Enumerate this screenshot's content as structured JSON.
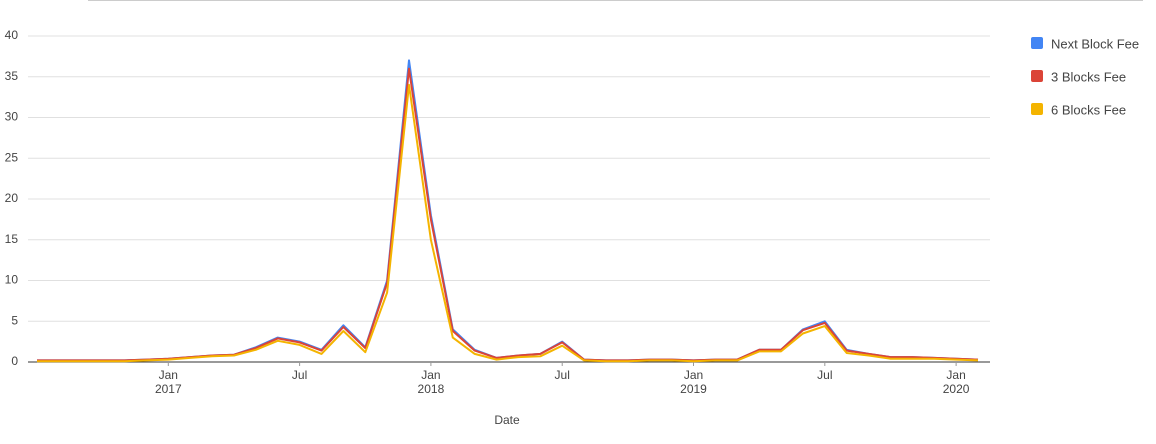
{
  "chart_data": {
    "type": "line",
    "x_label": "Date",
    "x": [
      "2016-07",
      "2016-08",
      "2016-09",
      "2016-10",
      "2016-11",
      "2016-12",
      "2017-01",
      "2017-02",
      "2017-03",
      "2017-04",
      "2017-05",
      "2017-06",
      "2017-07",
      "2017-08",
      "2017-09",
      "2017-10",
      "2017-11",
      "2017-12",
      "2018-01",
      "2018-02",
      "2018-03",
      "2018-04",
      "2018-05",
      "2018-06",
      "2018-07",
      "2018-08",
      "2018-09",
      "2018-10",
      "2018-11",
      "2018-12",
      "2019-01",
      "2019-02",
      "2019-03",
      "2019-04",
      "2019-05",
      "2019-06",
      "2019-07",
      "2019-08",
      "2019-09",
      "2019-10",
      "2019-11",
      "2019-12",
      "2020-01",
      "2020-02"
    ],
    "series": [
      {
        "name": "Next Block Fee",
        "color": "#4285f4",
        "values": [
          0.2,
          0.2,
          0.2,
          0.2,
          0.2,
          0.3,
          0.4,
          0.6,
          0.8,
          0.9,
          1.8,
          3.0,
          2.5,
          1.5,
          4.5,
          1.8,
          10,
          37,
          18,
          4,
          1.5,
          0.5,
          0.8,
          1,
          2.5,
          0.3,
          0.2,
          0.2,
          0.3,
          0.3,
          0.2,
          0.3,
          0.3,
          1.5,
          1.5,
          4,
          5,
          1.5,
          1,
          0.6,
          0.6,
          0.5,
          0.4,
          0.3
        ]
      },
      {
        "name": "3 Blocks Fee",
        "color": "#db4437",
        "values": [
          0.2,
          0.2,
          0.2,
          0.2,
          0.2,
          0.3,
          0.4,
          0.6,
          0.8,
          0.9,
          1.7,
          2.9,
          2.4,
          1.4,
          4.3,
          1.7,
          9.7,
          36,
          17.5,
          3.8,
          1.4,
          0.5,
          0.8,
          1,
          2.4,
          0.3,
          0.2,
          0.2,
          0.3,
          0.3,
          0.2,
          0.3,
          0.3,
          1.5,
          1.5,
          3.9,
          4.8,
          1.4,
          1,
          0.6,
          0.6,
          0.5,
          0.4,
          0.3
        ]
      },
      {
        "name": "6 Blocks Fee",
        "color": "#f4b400",
        "values": [
          0.1,
          0.1,
          0.1,
          0.1,
          0.1,
          0.2,
          0.3,
          0.5,
          0.7,
          0.8,
          1.5,
          2.6,
          2.1,
          1,
          3.8,
          1.2,
          8.5,
          34,
          15,
          3,
          1,
          0.3,
          0.6,
          0.7,
          2,
          0.2,
          0.1,
          0.1,
          0.2,
          0.2,
          0.1,
          0.2,
          0.2,
          1.3,
          1.3,
          3.5,
          4.4,
          1.1,
          0.8,
          0.4,
          0.4,
          0.4,
          0.3,
          0.2
        ]
      }
    ],
    "xlim": [
      "2016-07",
      "2020-02"
    ],
    "xticks": [
      {
        "value": "2017-01",
        "label": "Jan 2017"
      },
      {
        "value": "2017-07",
        "label": "Jul"
      },
      {
        "value": "2018-01",
        "label": "Jan 2018"
      },
      {
        "value": "2018-07",
        "label": "Jul"
      },
      {
        "value": "2019-01",
        "label": "Jan 2019"
      },
      {
        "value": "2019-07",
        "label": "Jul"
      },
      {
        "value": "2020-01",
        "label": "Jan 2020"
      }
    ],
    "ylim": [
      0,
      40
    ],
    "yticks": [
      0,
      5,
      10,
      15,
      20,
      25,
      30,
      35,
      40
    ],
    "grid": true,
    "legend": "right"
  }
}
